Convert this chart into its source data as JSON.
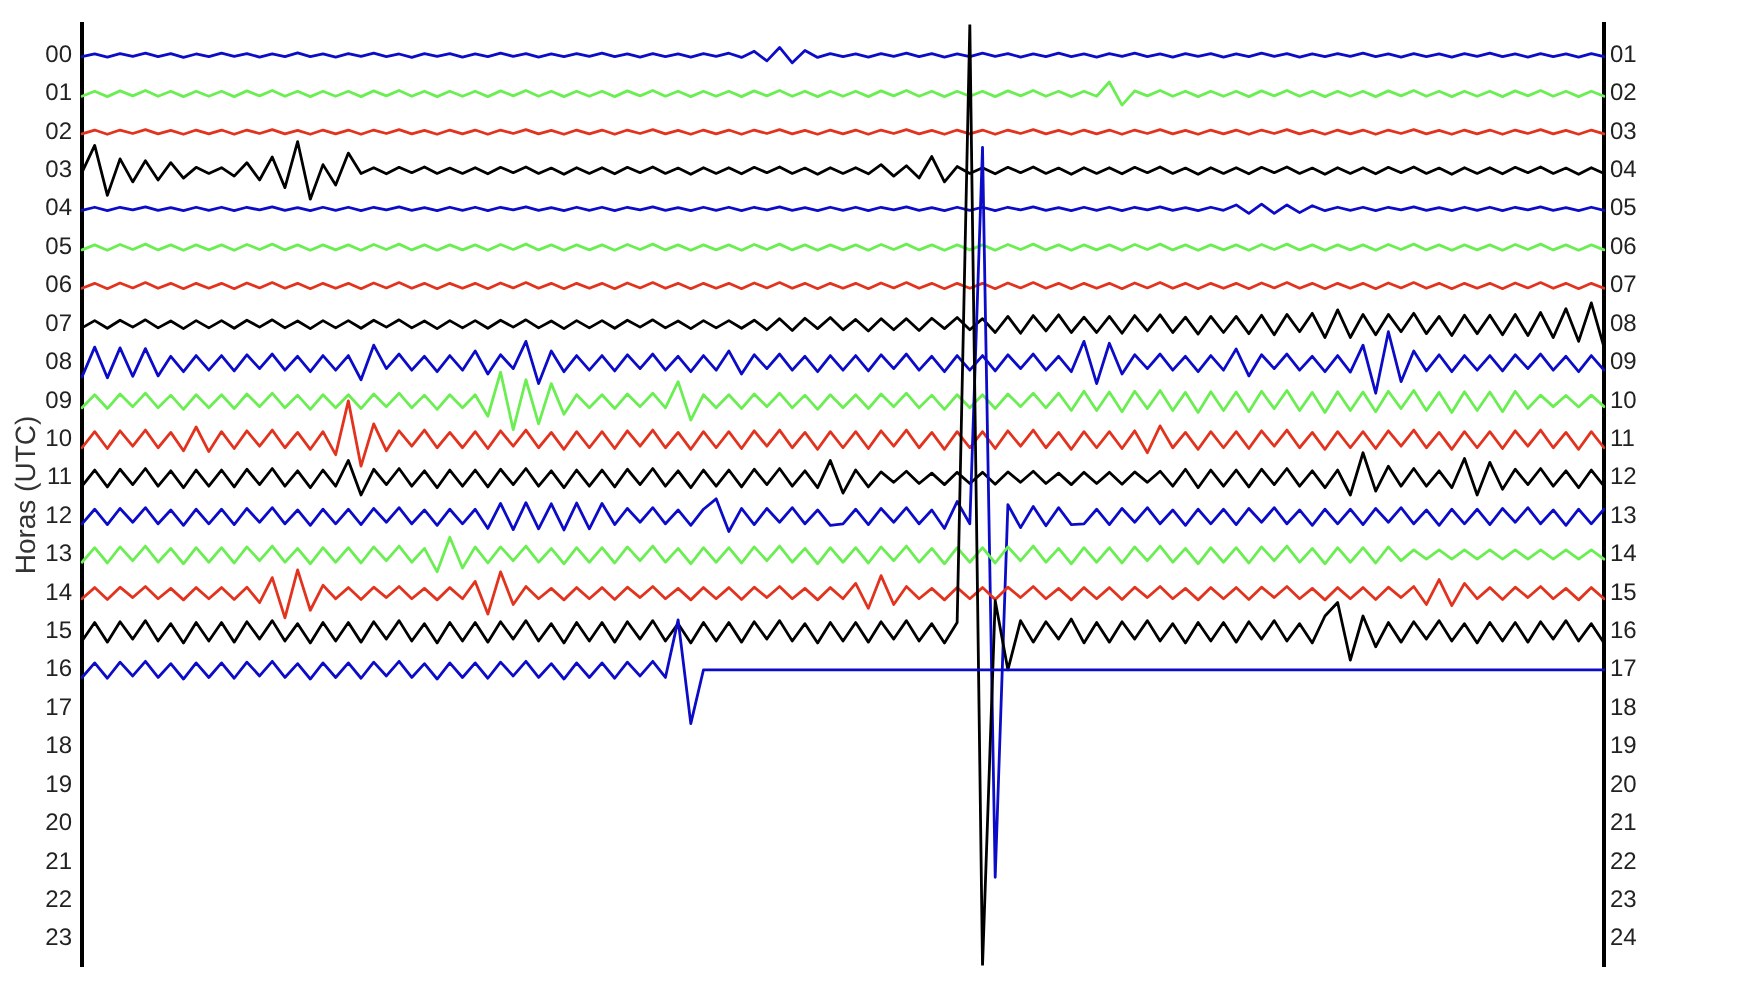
{
  "chart_data": {
    "type": "line",
    "ylabel": "Horas (UTC)",
    "categories": [
      null,
      null,
      null,
      null,
      null,
      null,
      null,
      null,
      null,
      null,
      null,
      null,
      null,
      null,
      null,
      null,
      null,
      null,
      null,
      null,
      null,
      null,
      null,
      null,
      null,
      null,
      null,
      null,
      null,
      null,
      null,
      null,
      null,
      null,
      null,
      null,
      null,
      null,
      null,
      null,
      null,
      null,
      null,
      null,
      null,
      null,
      null,
      null,
      null,
      null,
      null,
      null,
      null,
      null,
      null,
      null,
      null,
      null,
      null,
      null,
      null,
      null,
      null,
      null,
      null,
      null,
      null,
      null,
      null,
      null,
      null,
      null,
      null,
      null,
      null,
      null,
      null,
      null,
      null,
      null,
      null,
      null,
      null,
      null,
      null,
      null,
      null,
      null,
      null,
      null,
      null,
      null,
      null,
      null,
      null,
      null,
      null,
      null,
      null,
      null,
      null,
      null,
      null,
      null,
      null,
      null,
      null,
      null,
      null,
      null,
      null,
      null,
      null,
      null,
      null,
      null,
      null,
      null,
      null,
      null,
      null
    ],
    "ylim": [
      23.7,
      -0.8
    ],
    "yticks": [
      {
        "value": 0,
        "label": "00"
      },
      {
        "value": 1,
        "label": "01"
      },
      {
        "value": 2,
        "label": "02"
      },
      {
        "value": 3,
        "label": "03"
      },
      {
        "value": 4,
        "label": "04"
      },
      {
        "value": 5,
        "label": "05"
      },
      {
        "value": 6,
        "label": "06"
      },
      {
        "value": 7,
        "label": "07"
      },
      {
        "value": 8,
        "label": "08"
      },
      {
        "value": 9,
        "label": "09"
      },
      {
        "value": 10,
        "label": "10"
      },
      {
        "value": 11,
        "label": "11"
      },
      {
        "value": 12,
        "label": "12"
      },
      {
        "value": 13,
        "label": "13"
      },
      {
        "value": 14,
        "label": "14"
      },
      {
        "value": 15,
        "label": "15"
      },
      {
        "value": 16,
        "label": "16"
      },
      {
        "value": 17,
        "label": "17"
      },
      {
        "value": 18,
        "label": "18"
      },
      {
        "value": 19,
        "label": "19"
      },
      {
        "value": 20,
        "label": "20"
      },
      {
        "value": 21,
        "label": "21"
      },
      {
        "value": 22,
        "label": "22"
      },
      {
        "value": 23,
        "label": "23"
      }
    ],
    "y2lim": [
      24.7,
      0.2
    ],
    "y2ticks": [
      {
        "value": 1,
        "label": "01"
      },
      {
        "value": 2,
        "label": "02"
      },
      {
        "value": 3,
        "label": "03"
      },
      {
        "value": 4,
        "label": "04"
      },
      {
        "value": 5,
        "label": "05"
      },
      {
        "value": 6,
        "label": "06"
      },
      {
        "value": 7,
        "label": "07"
      },
      {
        "value": 8,
        "label": "08"
      },
      {
        "value": 9,
        "label": "09"
      },
      {
        "value": 10,
        "label": "10"
      },
      {
        "value": 11,
        "label": "11"
      },
      {
        "value": 12,
        "label": "12"
      },
      {
        "value": 13,
        "label": "13"
      },
      {
        "value": 14,
        "label": "14"
      },
      {
        "value": 15,
        "label": "15"
      },
      {
        "value": 16,
        "label": "16"
      },
      {
        "value": 17,
        "label": "17"
      },
      {
        "value": 18,
        "label": "18"
      },
      {
        "value": 19,
        "label": "19"
      },
      {
        "value": 20,
        "label": "20"
      },
      {
        "value": 21,
        "label": "21"
      },
      {
        "value": 22,
        "label": "22"
      },
      {
        "value": 23,
        "label": "23"
      },
      {
        "value": 24,
        "label": "24"
      }
    ],
    "series": [
      {
        "color": "#0c0cc8",
        "values": [
          0.04,
          -0.03,
          0.05,
          -0.04,
          0.03,
          -0.05,
          0.04,
          -0.04,
          0.06,
          -0.03,
          0.04,
          -0.05,
          0.03,
          -0.04,
          0.05,
          -0.03,
          0.04,
          -0.06,
          0.04,
          -0.03,
          0.05,
          -0.04,
          0.03,
          -0.05,
          0.04,
          -0.03,
          0.06,
          -0.04,
          0.03,
          -0.04,
          0.05,
          -0.03,
          0.04,
          -0.05,
          0.03,
          -0.04,
          0.05,
          -0.03,
          0.04,
          -0.04,
          0.03,
          -0.05,
          0.04,
          -0.03,
          0.05,
          -0.04,
          0.04,
          -0.03,
          0.05,
          -0.04,
          0.03,
          -0.05,
          0.06,
          -0.1,
          0.15,
          -0.2,
          0.2,
          -0.12,
          0.06,
          -0.04,
          0.04,
          -0.03,
          0.05,
          -0.04,
          0.03,
          -0.05,
          0.04,
          -0.04,
          0.05,
          -0.03,
          0.04,
          -0.05,
          0.03,
          -0.04,
          0.05,
          -0.03,
          0.04,
          -0.05,
          0.04,
          -0.03,
          0.05,
          -0.04,
          0.03,
          -0.05,
          0.04,
          -0.03,
          0.05,
          -0.04,
          0.03,
          -0.04,
          0.05,
          -0.03,
          0.04,
          -0.05,
          0.03,
          -0.04,
          0.05,
          -0.03,
          0.04,
          -0.04,
          0.03,
          -0.05,
          0.04,
          -0.03,
          0.05,
          -0.04,
          0.04,
          -0.03,
          0.05,
          -0.04,
          0.03,
          -0.05,
          0.04,
          -0.03,
          0.05,
          -0.04,
          0.04,
          -0.03,
          0.05,
          -0.04,
          0.04
        ]
      },
      {
        "color": "#6aee52",
        "values": [
          1.07,
          0.94,
          1.08,
          0.93,
          1.06,
          0.92,
          1.07,
          0.94,
          1.08,
          0.94,
          1.07,
          0.94,
          1.08,
          0.93,
          1.06,
          0.92,
          1.07,
          0.94,
          1.08,
          0.94,
          1.07,
          0.94,
          1.08,
          0.93,
          1.06,
          0.92,
          1.07,
          0.94,
          1.08,
          0.94,
          1.07,
          0.94,
          1.08,
          0.93,
          1.06,
          0.92,
          1.07,
          0.94,
          1.08,
          0.94,
          1.07,
          0.94,
          1.08,
          0.93,
          1.06,
          0.92,
          1.07,
          0.94,
          1.08,
          0.94,
          1.07,
          0.94,
          1.08,
          0.93,
          1.06,
          0.92,
          1.07,
          0.94,
          1.08,
          0.94,
          1.07,
          0.94,
          1.08,
          0.93,
          1.06,
          0.92,
          1.07,
          0.94,
          1.08,
          0.94,
          1.07,
          0.94,
          1.08,
          0.93,
          1.06,
          0.92,
          1.07,
          0.94,
          1.08,
          0.94,
          1.07,
          0.7,
          1.3,
          0.93,
          1.06,
          0.92,
          1.07,
          0.94,
          1.08,
          0.94,
          1.07,
          0.94,
          1.08,
          0.93,
          1.06,
          0.92,
          1.07,
          0.94,
          1.08,
          0.94,
          1.07,
          0.94,
          1.08,
          0.93,
          1.06,
          0.92,
          1.07,
          0.94,
          1.08,
          0.94,
          1.07,
          0.94,
          1.08,
          0.93,
          1.06,
          0.92,
          1.07,
          0.94,
          1.08,
          0.94,
          1.07
        ]
      },
      {
        "color": "#e2331e",
        "values": [
          2.05,
          1.95,
          2.06,
          1.95,
          2.04,
          1.94,
          2.05,
          1.96,
          2.06,
          1.95,
          2.05,
          1.95,
          2.06,
          1.95,
          2.04,
          1.94,
          2.05,
          1.96,
          2.06,
          1.95,
          2.05,
          1.95,
          2.06,
          1.95,
          2.04,
          1.94,
          2.05,
          1.96,
          2.06,
          1.95,
          2.05,
          1.95,
          2.06,
          1.95,
          2.04,
          1.94,
          2.05,
          1.96,
          2.06,
          1.95,
          2.05,
          1.95,
          2.06,
          1.95,
          2.04,
          1.94,
          2.05,
          1.96,
          2.06,
          1.95,
          2.05,
          1.95,
          2.06,
          1.95,
          2.04,
          1.94,
          2.05,
          1.96,
          2.06,
          1.95,
          2.05,
          1.95,
          2.06,
          1.95,
          2.04,
          1.94,
          2.05,
          1.96,
          2.06,
          1.95,
          2.05,
          1.95,
          2.06,
          1.95,
          2.04,
          1.94,
          2.05,
          1.96,
          2.06,
          1.95,
          2.05,
          1.95,
          2.06,
          1.95,
          2.04,
          1.94,
          2.05,
          1.96,
          2.06,
          1.95,
          2.05,
          1.95,
          2.06,
          1.95,
          2.04,
          1.94,
          2.05,
          1.96,
          2.06,
          1.95,
          2.05,
          1.95,
          2.06,
          1.95,
          2.04,
          1.94,
          2.05,
          1.96,
          2.06,
          1.95,
          2.05,
          1.95,
          2.06,
          1.95,
          2.04,
          1.94,
          2.05,
          1.96,
          2.06,
          1.95,
          2.05
        ]
      },
      {
        "color": "#000000",
        "values": [
          3.05,
          2.35,
          3.65,
          2.7,
          3.3,
          2.75,
          3.25,
          2.8,
          3.2,
          2.92,
          3.08,
          2.93,
          3.15,
          2.8,
          3.25,
          2.65,
          3.45,
          2.25,
          3.75,
          2.85,
          3.38,
          2.55,
          3.08,
          2.93,
          3.09,
          2.92,
          3.06,
          2.91,
          3.08,
          2.94,
          3.08,
          2.93,
          3.09,
          2.92,
          3.06,
          2.91,
          3.08,
          2.94,
          3.1,
          2.93,
          3.08,
          2.93,
          3.09,
          2.92,
          3.06,
          2.91,
          3.08,
          2.94,
          3.1,
          2.93,
          3.08,
          2.93,
          3.09,
          2.92,
          3.06,
          2.91,
          3.08,
          2.94,
          3.1,
          2.93,
          3.08,
          2.93,
          3.09,
          2.85,
          3.15,
          2.88,
          3.2,
          2.64,
          3.3,
          2.9,
          3.08,
          2.93,
          3.09,
          2.92,
          3.06,
          2.91,
          3.08,
          2.94,
          3.1,
          2.93,
          3.08,
          2.93,
          3.09,
          2.92,
          3.06,
          2.91,
          3.08,
          2.94,
          3.1,
          2.93,
          3.08,
          2.93,
          3.09,
          2.92,
          3.06,
          2.91,
          3.08,
          2.94,
          3.1,
          2.93,
          3.08,
          2.93,
          3.09,
          2.92,
          3.06,
          2.91,
          3.08,
          2.94,
          3.1,
          2.93,
          3.08,
          2.93,
          3.09,
          2.92,
          3.06,
          2.91,
          3.08,
          2.94,
          3.1,
          2.93,
          3.08
        ]
      },
      {
        "color": "#0c0cc8",
        "values": [
          4.04,
          3.96,
          4.05,
          3.96,
          4.03,
          3.95,
          4.04,
          3.97,
          4.05,
          3.96,
          4.04,
          3.96,
          4.05,
          3.96,
          4.03,
          3.95,
          4.04,
          3.97,
          4.05,
          3.96,
          4.04,
          3.96,
          4.05,
          3.96,
          4.03,
          3.95,
          4.04,
          3.97,
          4.05,
          3.96,
          4.04,
          3.96,
          4.05,
          3.96,
          4.03,
          3.95,
          4.04,
          3.97,
          4.05,
          3.96,
          4.04,
          3.96,
          4.05,
          3.96,
          4.03,
          3.95,
          4.04,
          3.97,
          4.05,
          3.96,
          4.04,
          3.96,
          4.05,
          3.96,
          4.03,
          3.95,
          4.04,
          3.97,
          4.05,
          3.96,
          4.04,
          3.96,
          4.05,
          3.96,
          4.03,
          3.95,
          4.04,
          3.97,
          4.05,
          3.96,
          4.04,
          3.96,
          4.05,
          3.96,
          4.03,
          3.95,
          4.04,
          3.97,
          4.05,
          3.96,
          4.04,
          3.96,
          4.05,
          3.96,
          4.03,
          3.95,
          4.04,
          3.97,
          4.05,
          3.96,
          4.04,
          3.9,
          4.12,
          3.88,
          4.12,
          3.9,
          4.1,
          3.92,
          4.05,
          3.96,
          4.04,
          3.96,
          4.05,
          3.96,
          4.03,
          3.95,
          4.04,
          3.97,
          4.05,
          3.96,
          4.04,
          3.96,
          4.05,
          3.96,
          4.03,
          3.95,
          4.04,
          3.97,
          4.05,
          3.96,
          4.04
        ]
      },
      {
        "color": "#6aee52",
        "values": [
          5.07,
          4.94,
          5.08,
          4.93,
          5.06,
          4.92,
          5.07,
          4.94,
          5.08,
          4.94,
          5.07,
          4.94,
          5.08,
          4.93,
          5.06,
          4.92,
          5.07,
          4.94,
          5.08,
          4.94,
          5.07,
          4.94,
          5.08,
          4.93,
          5.06,
          4.92,
          5.07,
          4.94,
          5.08,
          4.94,
          5.07,
          4.94,
          5.08,
          4.93,
          5.06,
          4.92,
          5.07,
          4.94,
          5.08,
          4.94,
          5.07,
          4.94,
          5.08,
          4.93,
          5.06,
          4.92,
          5.07,
          4.94,
          5.08,
          4.94,
          5.07,
          4.94,
          5.08,
          4.93,
          5.06,
          4.92,
          5.07,
          4.94,
          5.08,
          4.94,
          5.07,
          4.94,
          5.08,
          4.93,
          5.06,
          4.92,
          5.07,
          4.94,
          5.08,
          4.94,
          5.07,
          4.94,
          5.08,
          4.93,
          5.06,
          4.92,
          5.07,
          4.94,
          5.08,
          4.94,
          5.07,
          4.94,
          5.08,
          4.93,
          5.06,
          4.92,
          5.07,
          4.94,
          5.08,
          4.94,
          5.07,
          4.94,
          5.08,
          4.93,
          5.06,
          4.92,
          5.07,
          4.94,
          5.08,
          4.94,
          5.07,
          4.94,
          5.08,
          4.93,
          5.06,
          4.92,
          5.07,
          4.94,
          5.08,
          4.94,
          5.07,
          4.94,
          5.08,
          4.93,
          5.06,
          4.92,
          5.07,
          4.94,
          5.08,
          4.94,
          5.07
        ]
      },
      {
        "color": "#e2331e",
        "values": [
          6.07,
          5.94,
          6.08,
          5.93,
          6.06,
          5.92,
          6.07,
          5.94,
          6.08,
          5.94,
          6.07,
          5.94,
          6.08,
          5.93,
          6.06,
          5.92,
          6.07,
          5.94,
          6.08,
          5.94,
          6.07,
          5.94,
          6.08,
          5.93,
          6.06,
          5.92,
          6.07,
          5.94,
          6.08,
          5.94,
          6.07,
          5.94,
          6.08,
          5.93,
          6.06,
          5.92,
          6.07,
          5.94,
          6.08,
          5.94,
          6.07,
          5.94,
          6.08,
          5.93,
          6.06,
          5.92,
          6.07,
          5.94,
          6.08,
          5.94,
          6.07,
          5.94,
          6.08,
          5.93,
          6.06,
          5.92,
          6.07,
          5.94,
          6.08,
          5.94,
          6.07,
          5.94,
          6.08,
          5.93,
          6.06,
          5.92,
          6.07,
          5.94,
          6.08,
          5.94,
          6.07,
          5.94,
          6.08,
          5.93,
          6.06,
          5.92,
          6.07,
          5.94,
          6.08,
          5.94,
          6.07,
          5.94,
          6.08,
          5.93,
          6.06,
          5.92,
          6.07,
          5.94,
          6.08,
          5.94,
          6.07,
          5.94,
          6.08,
          5.93,
          6.06,
          5.92,
          6.07,
          5.94,
          6.08,
          5.94,
          6.07,
          5.94,
          6.08,
          5.93,
          6.06,
          5.92,
          6.07,
          5.94,
          6.08,
          5.94,
          6.07,
          5.94,
          6.08,
          5.93,
          6.06,
          5.92,
          6.07,
          5.94,
          6.08,
          5.94,
          6.07
        ]
      },
      {
        "color": "#000000",
        "values": [
          7.1,
          6.91,
          7.11,
          6.9,
          7.08,
          6.89,
          7.1,
          6.92,
          7.12,
          6.91,
          7.1,
          6.91,
          7.11,
          6.9,
          7.08,
          6.89,
          7.1,
          6.92,
          7.12,
          6.91,
          7.1,
          6.91,
          7.11,
          6.9,
          7.08,
          6.89,
          7.1,
          6.92,
          7.12,
          6.91,
          7.1,
          6.91,
          7.11,
          6.9,
          7.08,
          6.89,
          7.1,
          6.92,
          7.12,
          6.91,
          7.1,
          6.91,
          7.11,
          6.9,
          7.08,
          6.89,
          7.1,
          6.92,
          7.12,
          6.91,
          7.1,
          6.91,
          7.11,
          6.9,
          7.15,
          6.86,
          7.17,
          6.85,
          7.12,
          6.83,
          7.15,
          6.88,
          7.18,
          6.86,
          7.15,
          6.86,
          7.17,
          6.85,
          7.12,
          6.83,
          7.15,
          6.86,
          7.22,
          6.8,
          7.24,
          6.78,
          7.18,
          6.76,
          7.22,
          6.82,
          7.22,
          6.8,
          7.24,
          6.78,
          7.18,
          6.76,
          7.22,
          6.82,
          7.26,
          6.8,
          7.22,
          6.8,
          7.25,
          6.77,
          7.28,
          6.75,
          7.2,
          6.72,
          7.35,
          6.63,
          7.35,
          6.75,
          7.28,
          6.75,
          7.2,
          6.72,
          7.25,
          6.8,
          7.3,
          6.77,
          7.25,
          6.77,
          7.28,
          6.75,
          7.3,
          6.7,
          7.35,
          6.6,
          7.45,
          6.45,
          7.6
        ]
      },
      {
        "color": "#0c0cc8",
        "values": [
          8.38,
          7.6,
          8.4,
          7.62,
          8.36,
          7.64,
          8.35,
          7.84,
          8.24,
          7.82,
          8.2,
          7.82,
          8.22,
          7.8,
          8.16,
          7.78,
          8.2,
          7.84,
          8.24,
          7.82,
          8.2,
          7.82,
          8.45,
          7.55,
          8.16,
          7.78,
          8.2,
          7.84,
          8.24,
          7.82,
          8.2,
          7.7,
          8.3,
          7.8,
          8.16,
          7.45,
          8.55,
          7.7,
          8.24,
          7.82,
          8.2,
          7.82,
          8.22,
          7.8,
          8.16,
          7.78,
          8.2,
          7.84,
          8.24,
          7.82,
          8.2,
          7.7,
          8.3,
          7.8,
          8.16,
          7.78,
          8.2,
          7.84,
          8.24,
          7.82,
          8.2,
          7.82,
          8.22,
          7.8,
          8.16,
          7.78,
          8.2,
          7.84,
          8.24,
          7.82,
          8.2,
          7.82,
          8.22,
          7.8,
          8.16,
          7.78,
          8.2,
          7.84,
          8.24,
          7.45,
          8.55,
          7.5,
          8.3,
          7.8,
          8.16,
          7.78,
          8.2,
          7.84,
          8.24,
          7.82,
          8.2,
          7.65,
          8.35,
          7.8,
          8.16,
          7.78,
          8.2,
          7.84,
          8.24,
          7.82,
          8.25,
          7.55,
          8.8,
          7.2,
          8.5,
          7.7,
          8.22,
          7.8,
          8.24,
          7.82,
          8.2,
          7.82,
          8.22,
          7.8,
          8.16,
          7.78,
          8.2,
          7.84,
          8.24,
          7.82,
          8.2
        ]
      },
      {
        "color": "#6aee52",
        "values": [
          9.18,
          8.84,
          9.2,
          8.82,
          9.15,
          8.8,
          9.18,
          8.85,
          9.22,
          8.84,
          9.18,
          8.84,
          9.2,
          8.82,
          9.15,
          8.8,
          9.18,
          8.85,
          9.22,
          8.84,
          9.18,
          8.84,
          9.2,
          8.82,
          9.15,
          8.8,
          9.18,
          8.85,
          9.22,
          8.84,
          9.18,
          8.84,
          9.4,
          8.25,
          9.75,
          8.45,
          9.6,
          8.55,
          9.35,
          8.84,
          9.18,
          8.84,
          9.2,
          8.82,
          9.15,
          8.8,
          9.18,
          8.5,
          9.5,
          8.84,
          9.18,
          8.84,
          9.2,
          8.82,
          9.15,
          8.8,
          9.18,
          8.85,
          9.22,
          8.84,
          9.18,
          8.84,
          9.2,
          8.82,
          9.15,
          8.8,
          9.18,
          8.85,
          9.22,
          8.84,
          9.18,
          8.84,
          9.2,
          8.82,
          9.15,
          8.8,
          9.18,
          8.8,
          9.25,
          8.75,
          9.25,
          8.77,
          9.28,
          8.75,
          9.2,
          8.73,
          9.25,
          8.78,
          9.3,
          8.76,
          9.25,
          8.77,
          9.28,
          8.75,
          9.2,
          8.73,
          9.25,
          8.78,
          9.3,
          8.76,
          9.25,
          8.77,
          9.28,
          8.75,
          9.2,
          8.73,
          9.25,
          8.78,
          9.3,
          8.76,
          9.25,
          8.77,
          9.28,
          8.75,
          9.2,
          8.85,
          9.15,
          8.86,
          9.16,
          8.85,
          9.15
        ]
      },
      {
        "color": "#e2331e",
        "values": [
          10.22,
          9.8,
          10.24,
          9.78,
          10.18,
          9.76,
          10.22,
          9.82,
          10.3,
          9.68,
          10.32,
          9.8,
          10.24,
          9.78,
          10.18,
          9.76,
          10.22,
          9.82,
          10.26,
          9.8,
          10.4,
          9,
          10.7,
          9.6,
          10.3,
          9.78,
          10.18,
          9.76,
          10.22,
          9.82,
          10.22,
          9.8,
          10.24,
          9.78,
          10.18,
          9.76,
          10.22,
          9.82,
          10.26,
          9.8,
          10.22,
          9.8,
          10.24,
          9.78,
          10.18,
          9.76,
          10.22,
          9.82,
          10.26,
          9.8,
          10.22,
          9.8,
          10.24,
          9.78,
          10.18,
          9.76,
          10.22,
          9.82,
          10.26,
          9.8,
          10.22,
          9.8,
          10.24,
          9.78,
          10.18,
          9.76,
          10.22,
          9.82,
          10.26,
          9.8,
          10.22,
          9.8,
          10.24,
          9.78,
          10.18,
          9.76,
          10.22,
          9.82,
          10.26,
          9.8,
          10.22,
          9.8,
          10.24,
          9.78,
          10.35,
          9.65,
          10.22,
          9.82,
          10.26,
          9.8,
          10.22,
          9.8,
          10.24,
          9.78,
          10.18,
          9.76,
          10.22,
          9.82,
          10.26,
          9.8,
          10.22,
          9.8,
          10.24,
          9.78,
          10.18,
          9.76,
          10.22,
          9.82,
          10.26,
          9.8,
          10.22,
          9.8,
          10.24,
          9.78,
          10.18,
          9.76,
          10.22,
          9.82,
          10.26,
          9.8,
          10.22
        ]
      },
      {
        "color": "#000000",
        "values": [
          11.22,
          10.8,
          11.24,
          10.78,
          11.18,
          10.76,
          11.22,
          10.82,
          11.26,
          10.8,
          11.22,
          10.8,
          11.24,
          10.78,
          11.18,
          10.76,
          11.22,
          10.82,
          11.26,
          10.8,
          11.22,
          10.55,
          11.45,
          10.78,
          11.18,
          10.76,
          11.22,
          10.82,
          11.26,
          10.8,
          11.22,
          10.8,
          11.24,
          10.78,
          11.18,
          10.76,
          11.22,
          10.82,
          11.26,
          10.8,
          11.22,
          10.8,
          11.24,
          10.78,
          11.18,
          10.76,
          11.22,
          10.82,
          11.26,
          10.8,
          11.22,
          10.8,
          11.24,
          10.78,
          11.18,
          10.76,
          11.22,
          10.82,
          11.26,
          10.55,
          11.4,
          10.8,
          11.24,
          10.85,
          11.12,
          10.83,
          11.15,
          10.88,
          11.18,
          10.86,
          11.15,
          10.86,
          11.17,
          10.85,
          11.12,
          10.83,
          11.15,
          10.88,
          11.18,
          10.86,
          11.15,
          10.86,
          11.17,
          10.85,
          11.12,
          10.83,
          11.22,
          10.78,
          11.26,
          10.8,
          11.22,
          10.8,
          11.24,
          10.78,
          11.18,
          10.76,
          11.22,
          10.82,
          11.26,
          10.8,
          11.45,
          10.35,
          11.35,
          10.7,
          11.22,
          10.76,
          11.22,
          10.82,
          11.26,
          10.5,
          11.45,
          10.6,
          11.3,
          10.78,
          11.18,
          10.76,
          11.22,
          10.82,
          11.26,
          10.8,
          11.22
        ]
      },
      {
        "color": "#0c0cc8",
        "values": [
          12.2,
          11.82,
          12.22,
          11.8,
          12.16,
          11.78,
          12.2,
          11.84,
          12.24,
          11.82,
          12.2,
          11.82,
          12.22,
          11.8,
          12.16,
          11.78,
          12.2,
          11.84,
          12.24,
          11.82,
          12.2,
          11.82,
          12.22,
          11.8,
          12.16,
          11.78,
          12.2,
          11.84,
          12.24,
          11.82,
          12.2,
          11.82,
          12.32,
          11.67,
          12.35,
          11.65,
          12.33,
          11.68,
          12.36,
          11.66,
          12.33,
          11.67,
          12.22,
          11.8,
          12.16,
          11.78,
          12.2,
          11.84,
          12.24,
          11.82,
          11.55,
          12.4,
          11.8,
          12.22,
          11.8,
          12.16,
          11.78,
          12.2,
          11.84,
          12.24,
          12.2,
          11.82,
          12.22,
          11.8,
          12.16,
          11.78,
          12.2,
          11.84,
          12.32,
          11.62,
          12.2,
          2.4,
          21.4,
          11.7,
          12.3,
          11.75,
          12.25,
          11.78,
          12.22,
          12.2,
          11.82,
          12.22,
          11.8,
          12.16,
          11.78,
          12.2,
          11.84,
          12.24,
          11.82,
          12.2,
          11.82,
          12.22,
          11.8,
          12.16,
          11.78,
          12.2,
          11.84,
          12.24,
          11.82,
          12.2,
          11.82,
          12.22,
          11.8,
          12.16,
          11.78,
          12.2,
          11.84,
          12.24,
          11.82,
          12.2,
          11.82,
          12.22,
          11.8,
          12.16,
          11.78,
          12.2,
          11.84,
          12.24,
          11.82,
          12.2,
          11.82
        ]
      },
      {
        "color": "#6aee52",
        "values": [
          13.2,
          12.82,
          13.22,
          12.8,
          13.16,
          12.78,
          13.2,
          12.84,
          13.24,
          12.82,
          13.2,
          12.82,
          13.22,
          12.8,
          13.16,
          12.78,
          13.2,
          12.84,
          13.24,
          12.82,
          13.2,
          12.82,
          13.22,
          12.8,
          13.16,
          12.78,
          13.2,
          12.84,
          13.45,
          12.55,
          13.35,
          12.8,
          13.22,
          12.8,
          13.16,
          12.78,
          13.2,
          12.84,
          13.24,
          12.82,
          13.2,
          12.82,
          13.22,
          12.8,
          13.16,
          12.78,
          13.2,
          12.84,
          13.24,
          12.82,
          13.2,
          12.82,
          13.22,
          12.8,
          13.16,
          12.78,
          13.2,
          12.84,
          13.24,
          12.82,
          13.2,
          12.82,
          13.22,
          12.8,
          13.16,
          12.78,
          13.2,
          12.84,
          13.24,
          12.82,
          13.2,
          12.82,
          13.22,
          12.8,
          13.16,
          12.78,
          13.2,
          12.84,
          13.24,
          12.82,
          13.2,
          12.82,
          13.22,
          12.8,
          13.16,
          12.78,
          13.2,
          12.84,
          13.24,
          12.82,
          13.2,
          12.82,
          13.22,
          12.8,
          13.16,
          12.78,
          13.2,
          12.84,
          13.24,
          12.82,
          13.2,
          12.82,
          13.22,
          12.8,
          13.16,
          12.88,
          13.12,
          12.88,
          13.12,
          12.88,
          13.12,
          12.88,
          13.12,
          12.88,
          13.12,
          12.88,
          13.12,
          12.88,
          13.12,
          12.88,
          13.12
        ]
      },
      {
        "color": "#e2331e",
        "values": [
          14.15,
          13.86,
          14.17,
          13.85,
          14.12,
          13.83,
          14.15,
          13.88,
          14.18,
          13.86,
          14.15,
          13.86,
          14.17,
          13.85,
          14.25,
          13.6,
          14.65,
          13.4,
          14.45,
          13.8,
          14.15,
          13.86,
          14.17,
          13.85,
          14.12,
          13.83,
          14.15,
          13.88,
          14.18,
          13.86,
          14.15,
          13.7,
          14.55,
          13.45,
          14.3,
          13.83,
          14.15,
          13.88,
          14.18,
          13.86,
          14.15,
          13.86,
          14.17,
          13.85,
          14.12,
          13.83,
          14.15,
          13.88,
          14.18,
          13.86,
          14.15,
          13.86,
          14.17,
          13.85,
          14.12,
          13.83,
          14.15,
          13.88,
          14.18,
          13.86,
          14.15,
          13.75,
          14.4,
          13.55,
          14.3,
          13.83,
          14.15,
          13.88,
          14.18,
          13.86,
          14.15,
          13.86,
          14.17,
          13.85,
          14.12,
          13.83,
          14.15,
          13.88,
          14.18,
          13.86,
          14.15,
          13.86,
          14.17,
          13.85,
          14.12,
          13.83,
          14.15,
          13.88,
          14.18,
          13.86,
          14.15,
          13.86,
          14.17,
          13.85,
          14.12,
          13.83,
          14.15,
          13.88,
          14.18,
          13.86,
          14.15,
          13.86,
          14.17,
          13.85,
          14.12,
          13.83,
          14.3,
          13.65,
          14.33,
          13.75,
          14.15,
          13.86,
          14.17,
          13.85,
          14.12,
          13.83,
          14.15,
          13.88,
          14.18,
          13.86,
          14.15
        ]
      },
      {
        "color": "#000000",
        "values": [
          15.25,
          14.77,
          15.28,
          14.75,
          15.2,
          14.72,
          15.25,
          14.8,
          15.3,
          14.77,
          15.25,
          14.77,
          15.28,
          14.75,
          15.2,
          14.72,
          15.25,
          14.8,
          15.3,
          14.77,
          15.25,
          14.77,
          15.28,
          14.75,
          15.2,
          14.72,
          15.25,
          14.8,
          15.3,
          14.77,
          15.25,
          14.77,
          15.28,
          14.75,
          15.2,
          14.72,
          15.25,
          14.8,
          15.3,
          14.77,
          15.25,
          14.77,
          15.28,
          14.75,
          15.2,
          14.72,
          15.25,
          14.8,
          15.3,
          14.77,
          15.25,
          14.77,
          15.28,
          14.75,
          15.2,
          14.72,
          15.25,
          14.8,
          15.3,
          14.77,
          15.25,
          14.77,
          15.28,
          14.75,
          15.2,
          14.72,
          15.25,
          14.8,
          15.3,
          14.77,
          -0.8,
          23.7,
          14.2,
          16,
          14.72,
          15.28,
          14.75,
          15.2,
          14.68,
          15.3,
          14.77,
          15.28,
          14.75,
          15.2,
          14.72,
          15.25,
          14.8,
          15.3,
          14.77,
          15.25,
          14.77,
          15.28,
          14.75,
          15.2,
          14.72,
          15.25,
          14.8,
          15.3,
          14.6,
          14.25,
          15.75,
          14.6,
          15.4,
          14.77,
          15.28,
          14.75,
          15.2,
          14.72,
          15.25,
          14.8,
          15.3,
          14.77,
          15.25,
          14.77,
          15.28,
          14.75,
          15.2,
          14.72,
          15.25,
          14.8,
          15.3
        ]
      },
      {
        "color": "#0c0cc8",
        "values": [
          16.2,
          15.82,
          16.22,
          15.8,
          16.16,
          15.78,
          16.2,
          15.84,
          16.24,
          15.82,
          16.2,
          15.82,
          16.22,
          15.8,
          16.16,
          15.78,
          16.2,
          15.84,
          16.24,
          15.82,
          16.2,
          15.82,
          16.22,
          15.8,
          16.16,
          15.78,
          16.2,
          15.84,
          16.24,
          15.82,
          16.2,
          15.82,
          16.22,
          15.8,
          16.16,
          15.78,
          16.2,
          15.84,
          16.24,
          15.82,
          16.2,
          15.82,
          16.22,
          15.8,
          16.16,
          15.78,
          16.2,
          14.7,
          17.4,
          16,
          16,
          16,
          16,
          16,
          16,
          16,
          16,
          16,
          16,
          16,
          16,
          16,
          16,
          16,
          16,
          16,
          16,
          16,
          16,
          16,
          16,
          16,
          16,
          16,
          16,
          16,
          16,
          16,
          16,
          16,
          16,
          16,
          16,
          16,
          16,
          16,
          16,
          16,
          16,
          16,
          16,
          16,
          16,
          16,
          16,
          16,
          16,
          16,
          16,
          16,
          16,
          16,
          16,
          16,
          16,
          16,
          16,
          16,
          16,
          16,
          16,
          16,
          16,
          16,
          16,
          16,
          16,
          16,
          16,
          16,
          16
        ]
      }
    ]
  }
}
